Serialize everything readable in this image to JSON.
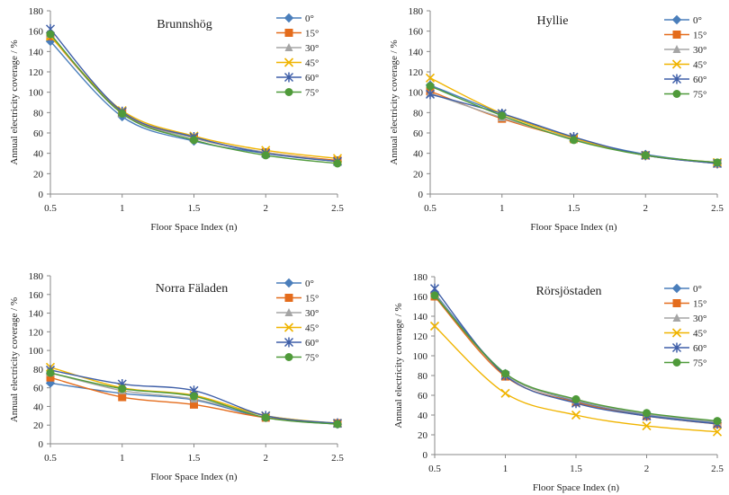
{
  "chart_data": [
    {
      "type": "line",
      "title": "Brunnshög",
      "xlabel": "Floor Space Index (n)",
      "ylabel": "Annual electricity coverage / %",
      "x": [
        0.5,
        1,
        1.5,
        2,
        2.5
      ],
      "ylim": [
        0,
        180
      ],
      "yticks": [
        0,
        20,
        40,
        60,
        80,
        100,
        120,
        140,
        160,
        180
      ],
      "xticks": [
        "0.5",
        "1",
        "1.5",
        "2",
        "2.5"
      ],
      "grid": false,
      "legend": "top-right",
      "series": [
        {
          "name": "0°",
          "values": [
            150,
            76,
            52,
            40,
            32
          ]
        },
        {
          "name": "15°",
          "values": [
            155,
            80,
            55,
            41,
            33
          ]
        },
        {
          "name": "30°",
          "values": [
            157,
            79,
            55,
            41,
            32
          ]
        },
        {
          "name": "45°",
          "values": [
            155,
            82,
            57,
            43,
            35
          ]
        },
        {
          "name": "60°",
          "values": [
            162,
            81,
            56,
            40,
            32
          ]
        },
        {
          "name": "75°",
          "values": [
            157,
            79,
            53,
            38,
            30
          ]
        }
      ]
    },
    {
      "type": "line",
      "title": "Hyllie",
      "xlabel": "Floor Space Index (n)",
      "ylabel": "Annual electricity coverage / %",
      "x": [
        0.5,
        1,
        1.5,
        2,
        2.5
      ],
      "ylim": [
        0,
        180
      ],
      "yticks": [
        0,
        20,
        40,
        60,
        80,
        100,
        120,
        140,
        160,
        180
      ],
      "xticks": [
        "0.5",
        "1",
        "1.5",
        "2",
        "2.5"
      ],
      "grid": false,
      "legend": "top-right",
      "series": [
        {
          "name": "0°",
          "values": [
            107,
            79,
            55,
            39,
            30
          ]
        },
        {
          "name": "15°",
          "values": [
            101,
            74,
            54,
            38,
            30
          ]
        },
        {
          "name": "30°",
          "values": [
            99,
            75,
            54,
            38,
            30
          ]
        },
        {
          "name": "45°",
          "values": [
            114,
            79,
            55,
            38,
            31
          ]
        },
        {
          "name": "60°",
          "values": [
            98,
            79,
            56,
            38,
            30
          ]
        },
        {
          "name": "75°",
          "values": [
            106,
            77,
            53,
            38,
            31
          ]
        }
      ]
    },
    {
      "type": "line",
      "title": "Norra Fäladen",
      "xlabel": "Floor Space Index (n)",
      "ylabel": "Annual electricity coverage / %",
      "x": [
        0.5,
        1,
        1.5,
        2,
        2.5
      ],
      "ylim": [
        0,
        180
      ],
      "yticks": [
        0,
        20,
        40,
        60,
        80,
        100,
        120,
        140,
        160,
        180
      ],
      "xticks": [
        "0.5",
        "1",
        "1.5",
        "2",
        "2.5"
      ],
      "grid": false,
      "legend": "top-right",
      "series": [
        {
          "name": "0°",
          "values": [
            65,
            54,
            47,
            28,
            21
          ]
        },
        {
          "name": "15°",
          "values": [
            71,
            50,
            42,
            28,
            22
          ]
        },
        {
          "name": "30°",
          "values": [
            76,
            57,
            48,
            30,
            21
          ]
        },
        {
          "name": "45°",
          "values": [
            82,
            60,
            52,
            30,
            22
          ]
        },
        {
          "name": "60°",
          "values": [
            79,
            64,
            57,
            30,
            22
          ]
        },
        {
          "name": "75°",
          "values": [
            76,
            59,
            51,
            28,
            21
          ]
        }
      ]
    },
    {
      "type": "line",
      "title": "Rörsjöstaden",
      "xlabel": "Floor Space Index (n)",
      "ylabel": "Annual electricity coverage / %",
      "x": [
        0.5,
        1,
        1.5,
        2,
        2.5
      ],
      "ylim": [
        0,
        180
      ],
      "yticks": [
        0,
        20,
        40,
        60,
        80,
        100,
        120,
        140,
        160,
        180
      ],
      "xticks": [
        "0.5",
        "1",
        "1.5",
        "2",
        "2.5"
      ],
      "grid": false,
      "legend": "top-right",
      "series": [
        {
          "name": "0°",
          "values": [
            163,
            82,
            54,
            40,
            32
          ]
        },
        {
          "name": "15°",
          "values": [
            160,
            79,
            53,
            39,
            31
          ]
        },
        {
          "name": "30°",
          "values": [
            162,
            81,
            55,
            41,
            33
          ]
        },
        {
          "name": "45°",
          "values": [
            130,
            62,
            40,
            29,
            23
          ]
        },
        {
          "name": "60°",
          "values": [
            168,
            80,
            52,
            39,
            31
          ]
        },
        {
          "name": "75°",
          "values": [
            161,
            82,
            56,
            42,
            34
          ]
        }
      ]
    }
  ],
  "series_style": [
    {
      "color": "#4a7ebb",
      "marker": "diamond"
    },
    {
      "color": "#e46c1c",
      "marker": "square"
    },
    {
      "color": "#a5a5a5",
      "marker": "triangle"
    },
    {
      "color": "#f0b400",
      "marker": "x"
    },
    {
      "color": "#3f5fa8",
      "marker": "star"
    },
    {
      "color": "#4f9a3a",
      "marker": "circle"
    }
  ]
}
